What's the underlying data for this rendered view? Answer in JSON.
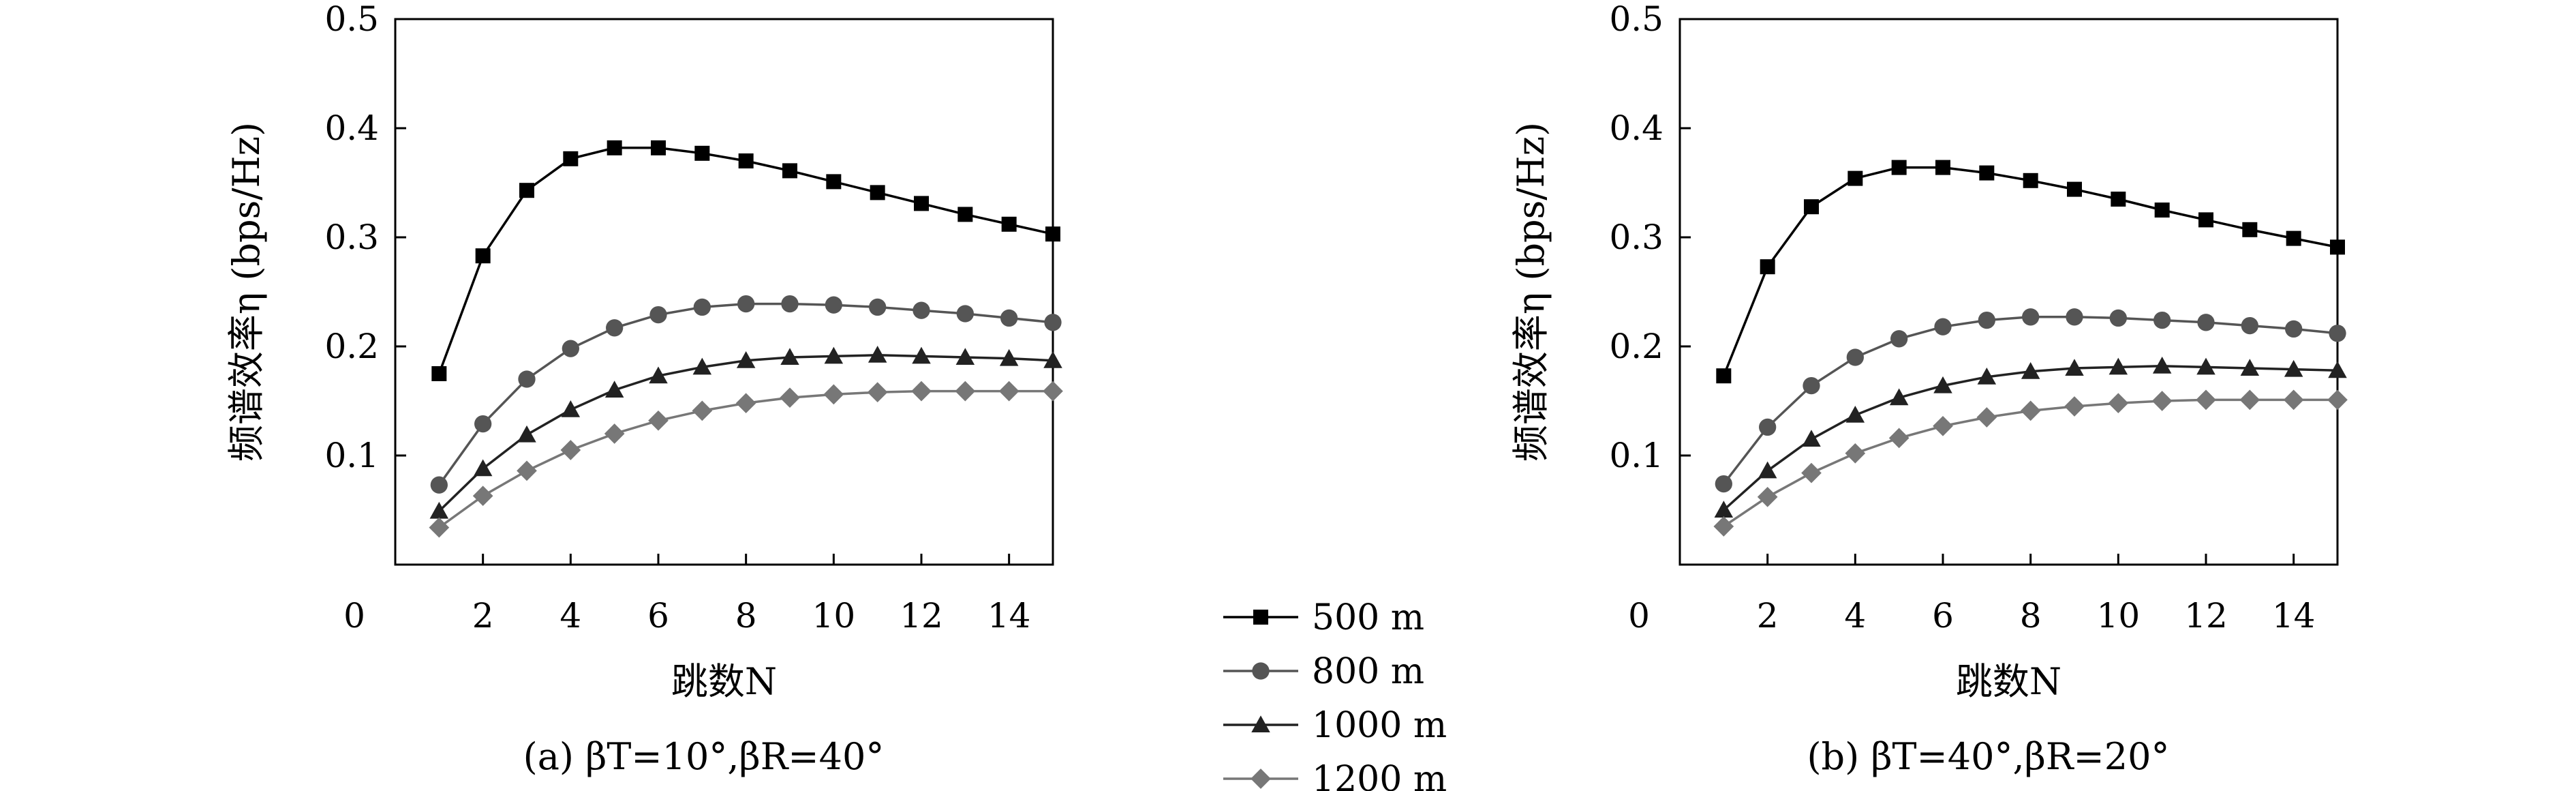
{
  "chart_data": [
    {
      "type": "line",
      "caption": "(a) βT=10°,βR=40°",
      "xlabel": "跳数N",
      "ylabel": "频谱效率η (bps/Hz)",
      "xlim": [
        0,
        15
      ],
      "ylim": [
        0,
        0.5
      ],
      "xticks": [
        "0",
        "2",
        "4",
        "6",
        "8",
        "10",
        "12",
        "14"
      ],
      "yticks": [
        "0.1",
        "0.2",
        "0.3",
        "0.4",
        "0.5"
      ],
      "x": [
        1,
        2,
        3,
        4,
        5,
        6,
        7,
        8,
        9,
        10,
        11,
        12,
        13,
        14,
        15
      ],
      "series": [
        {
          "name": "500 m",
          "marker": "square",
          "color": "#000000",
          "values": [
            0.175,
            0.283,
            0.343,
            0.372,
            0.382,
            0.382,
            0.377,
            0.37,
            0.361,
            0.351,
            0.341,
            0.331,
            0.321,
            0.312,
            0.303
          ]
        },
        {
          "name": "800 m",
          "marker": "circle",
          "color": "#555555",
          "values": [
            0.073,
            0.129,
            0.17,
            0.198,
            0.217,
            0.229,
            0.236,
            0.239,
            0.239,
            0.238,
            0.236,
            0.233,
            0.23,
            0.226,
            0.222
          ]
        },
        {
          "name": "1000 m",
          "marker": "triangle",
          "color": "#222222",
          "values": [
            0.049,
            0.088,
            0.119,
            0.142,
            0.16,
            0.173,
            0.181,
            0.187,
            0.19,
            0.191,
            0.192,
            0.191,
            0.19,
            0.189,
            0.187
          ]
        },
        {
          "name": "1200 m",
          "marker": "diamond",
          "color": "#777777",
          "values": [
            0.034,
            0.063,
            0.086,
            0.105,
            0.12,
            0.132,
            0.141,
            0.148,
            0.153,
            0.156,
            0.158,
            0.159,
            0.159,
            0.159,
            0.159
          ]
        }
      ]
    },
    {
      "type": "line",
      "caption": "(b) βT=40°,βR=20°",
      "xlabel": "跳数N",
      "ylabel": "频谱效率η (bps/Hz)",
      "xlim": [
        0,
        15
      ],
      "ylim": [
        0,
        0.5
      ],
      "xticks": [
        "0",
        "2",
        "4",
        "6",
        "8",
        "10",
        "12",
        "14"
      ],
      "yticks": [
        "0.1",
        "0.2",
        "0.3",
        "0.4",
        "0.5"
      ],
      "x": [
        1,
        2,
        3,
        4,
        5,
        6,
        7,
        8,
        9,
        10,
        11,
        12,
        13,
        14,
        15
      ],
      "series": [
        {
          "name": "500 m",
          "marker": "square",
          "color": "#000000",
          "values": [
            0.173,
            0.273,
            0.328,
            0.354,
            0.364,
            0.364,
            0.359,
            0.352,
            0.344,
            0.335,
            0.325,
            0.316,
            0.307,
            0.299,
            0.291
          ]
        },
        {
          "name": "800 m",
          "marker": "circle",
          "color": "#555555",
          "values": [
            0.074,
            0.126,
            0.164,
            0.19,
            0.207,
            0.218,
            0.224,
            0.227,
            0.227,
            0.226,
            0.224,
            0.222,
            0.219,
            0.216,
            0.212
          ]
        },
        {
          "name": "1000 m",
          "marker": "triangle",
          "color": "#222222",
          "values": [
            0.05,
            0.086,
            0.115,
            0.137,
            0.153,
            0.164,
            0.172,
            0.177,
            0.18,
            0.181,
            0.182,
            0.181,
            0.18,
            0.179,
            0.178
          ]
        },
        {
          "name": "1200 m",
          "marker": "diamond",
          "color": "#777777",
          "values": [
            0.035,
            0.062,
            0.084,
            0.102,
            0.116,
            0.127,
            0.135,
            0.141,
            0.145,
            0.148,
            0.15,
            0.151,
            0.151,
            0.151,
            0.151
          ]
        }
      ]
    }
  ],
  "legend": {
    "placement": "bottom-center",
    "entries": [
      {
        "label": "500 m",
        "marker": "square",
        "color": "#000000"
      },
      {
        "label": "800 m",
        "marker": "circle",
        "color": "#555555"
      },
      {
        "label": "1000 m",
        "marker": "triangle",
        "color": "#222222"
      },
      {
        "label": "1200 m",
        "marker": "diamond",
        "color": "#777777"
      }
    ]
  }
}
